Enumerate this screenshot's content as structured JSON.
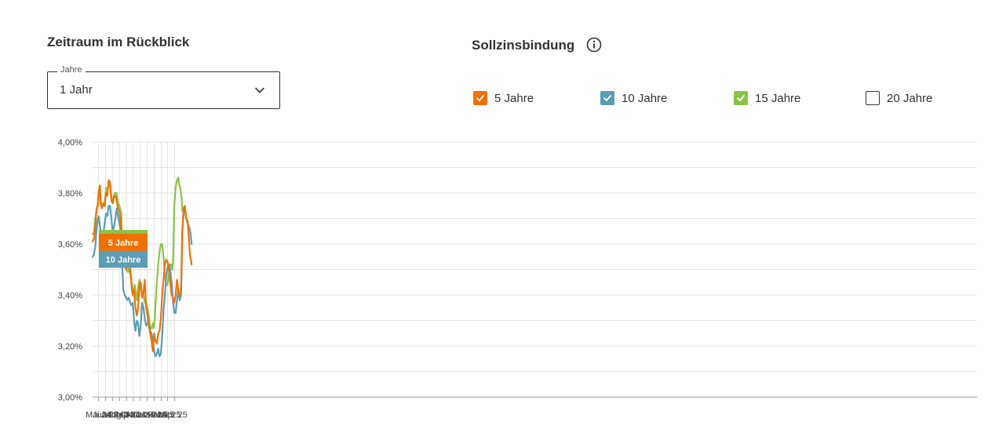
{
  "period": {
    "title": "Zeitraum im Rückblick",
    "select_label": "Jahre",
    "select_value": "1 Jahr"
  },
  "fixation": {
    "title": "Sollzinsbindung",
    "info_icon": "info-icon",
    "options": [
      {
        "label": "5 Jahre",
        "checked": true,
        "color": "#EE7203"
      },
      {
        "label": "10 Jahre",
        "checked": true,
        "color": "#5B9DB4"
      },
      {
        "label": "15 Jahre",
        "checked": true,
        "color": "#8BC34A"
      },
      {
        "label": "20 Jahre",
        "checked": false,
        "color": "#333333"
      }
    ]
  },
  "chart_data": {
    "type": "line",
    "y_ticks": [
      "4,00%",
      "3,80%",
      "3,60%",
      "3,40%",
      "3,20%",
      "3,00%"
    ],
    "ylim": [
      3.0,
      4.0
    ],
    "x_ticks": [
      {
        "label": "Mai 24",
        "t": 0.089
      },
      {
        "label": "Jun 24",
        "t": 0.194
      },
      {
        "label": "Jul 24",
        "t": 0.296
      },
      {
        "label": "Aug 24",
        "t": 0.401
      },
      {
        "label": "Sep 24",
        "t": 0.506
      },
      {
        "label": "Okt 24",
        "t": 0.608
      },
      {
        "label": "Nov 24",
        "t": 0.713
      },
      {
        "label": "Dez 24",
        "t": 0.815
      },
      {
        "label": "Jan 25",
        "t": 0.92
      },
      {
        "label": "Feb 25",
        "t": 1.025
      },
      {
        "label": "Mär 25",
        "t": 1.12
      },
      {
        "label": "Apr 25",
        "t": 1.225
      }
    ],
    "series": [
      {
        "name": "15 Jahre",
        "color": "#8BC34A",
        "tag": "",
        "points": [
          [
            0.0,
            3.64
          ],
          [
            0.02,
            3.64
          ],
          [
            0.04,
            3.7
          ],
          [
            0.06,
            3.73
          ],
          [
            0.08,
            3.77
          ],
          [
            0.09,
            3.81
          ],
          [
            0.11,
            3.82
          ],
          [
            0.12,
            3.77
          ],
          [
            0.14,
            3.75
          ],
          [
            0.16,
            3.76
          ],
          [
            0.18,
            3.75
          ],
          [
            0.2,
            3.82
          ],
          [
            0.23,
            3.82
          ],
          [
            0.25,
            3.85
          ],
          [
            0.27,
            3.81
          ],
          [
            0.29,
            3.77
          ],
          [
            0.31,
            3.77
          ],
          [
            0.33,
            3.8
          ],
          [
            0.36,
            3.8
          ],
          [
            0.38,
            3.76
          ],
          [
            0.4,
            3.75
          ],
          [
            0.43,
            3.72
          ],
          [
            0.44,
            3.59
          ],
          [
            0.46,
            3.53
          ],
          [
            0.48,
            3.53
          ],
          [
            0.5,
            3.5
          ],
          [
            0.53,
            3.49
          ],
          [
            0.55,
            3.51
          ],
          [
            0.57,
            3.47
          ],
          [
            0.59,
            3.41
          ],
          [
            0.61,
            3.42
          ],
          [
            0.63,
            3.44
          ],
          [
            0.65,
            3.4
          ],
          [
            0.66,
            3.38
          ],
          [
            0.68,
            3.43
          ],
          [
            0.7,
            3.46
          ],
          [
            0.72,
            3.42
          ],
          [
            0.74,
            3.41
          ],
          [
            0.76,
            3.4
          ],
          [
            0.78,
            3.37
          ],
          [
            0.8,
            3.37
          ],
          [
            0.82,
            3.35
          ],
          [
            0.84,
            3.32
          ],
          [
            0.86,
            3.27
          ],
          [
            0.88,
            3.27
          ],
          [
            0.9,
            3.29
          ],
          [
            0.91,
            3.27
          ],
          [
            0.93,
            3.31
          ],
          [
            0.94,
            3.37
          ],
          [
            0.96,
            3.45
          ],
          [
            0.98,
            3.52
          ],
          [
            1.0,
            3.57
          ],
          [
            1.02,
            3.6
          ],
          [
            1.04,
            3.6
          ],
          [
            1.06,
            3.55
          ],
          [
            1.08,
            3.48
          ],
          [
            1.1,
            3.44
          ],
          [
            1.12,
            3.44
          ],
          [
            1.14,
            3.48
          ],
          [
            1.16,
            3.52
          ],
          [
            1.18,
            3.52
          ],
          [
            1.19,
            3.5
          ],
          [
            1.2,
            3.52
          ],
          [
            1.21,
            3.62
          ],
          [
            1.22,
            3.75
          ],
          [
            1.24,
            3.82
          ],
          [
            1.26,
            3.85
          ],
          [
            1.28,
            3.86
          ],
          [
            1.29,
            3.84
          ],
          [
            1.31,
            3.82
          ],
          [
            1.32,
            3.8
          ],
          [
            1.33,
            3.78
          ],
          [
            1.34,
            3.73
          ]
        ]
      },
      {
        "name": "10 Jahre",
        "color": "#5B9DB4",
        "tag": "10 Jahre",
        "points": [
          [
            0.0,
            3.55
          ],
          [
            0.02,
            3.56
          ],
          [
            0.04,
            3.59
          ],
          [
            0.06,
            3.66
          ],
          [
            0.08,
            3.7
          ],
          [
            0.09,
            3.71
          ],
          [
            0.1,
            3.69
          ],
          [
            0.12,
            3.65
          ],
          [
            0.14,
            3.65
          ],
          [
            0.16,
            3.64
          ],
          [
            0.18,
            3.68
          ],
          [
            0.2,
            3.72
          ],
          [
            0.22,
            3.71
          ],
          [
            0.24,
            3.75
          ],
          [
            0.26,
            3.75
          ],
          [
            0.28,
            3.7
          ],
          [
            0.3,
            3.65
          ],
          [
            0.32,
            3.67
          ],
          [
            0.34,
            3.7
          ],
          [
            0.36,
            3.74
          ],
          [
            0.38,
            3.71
          ],
          [
            0.4,
            3.68
          ],
          [
            0.42,
            3.65
          ],
          [
            0.44,
            3.53
          ],
          [
            0.46,
            3.42
          ],
          [
            0.48,
            3.4
          ],
          [
            0.5,
            3.39
          ],
          [
            0.52,
            3.38
          ],
          [
            0.54,
            3.39
          ],
          [
            0.56,
            3.37
          ],
          [
            0.58,
            3.36
          ],
          [
            0.6,
            3.37
          ],
          [
            0.62,
            3.3
          ],
          [
            0.64,
            3.26
          ],
          [
            0.66,
            3.3
          ],
          [
            0.68,
            3.29
          ],
          [
            0.7,
            3.24
          ],
          [
            0.72,
            3.28
          ],
          [
            0.74,
            3.37
          ],
          [
            0.76,
            3.35
          ],
          [
            0.78,
            3.31
          ],
          [
            0.8,
            3.28
          ],
          [
            0.82,
            3.29
          ],
          [
            0.84,
            3.29
          ],
          [
            0.86,
            3.26
          ],
          [
            0.88,
            3.25
          ],
          [
            0.9,
            3.23
          ],
          [
            0.92,
            3.18
          ],
          [
            0.94,
            3.16
          ],
          [
            0.96,
            3.17
          ],
          [
            0.98,
            3.19
          ],
          [
            1.0,
            3.16
          ],
          [
            1.02,
            3.17
          ],
          [
            1.04,
            3.24
          ],
          [
            1.06,
            3.34
          ],
          [
            1.08,
            3.4
          ],
          [
            1.1,
            3.47
          ],
          [
            1.12,
            3.51
          ],
          [
            1.14,
            3.52
          ],
          [
            1.16,
            3.5
          ],
          [
            1.18,
            3.45
          ],
          [
            1.2,
            3.38
          ],
          [
            1.22,
            3.33
          ],
          [
            1.24,
            3.33
          ],
          [
            1.26,
            3.38
          ],
          [
            1.28,
            3.42
          ],
          [
            1.3,
            3.38
          ],
          [
            1.32,
            3.4
          ],
          [
            1.33,
            3.5
          ],
          [
            1.34,
            3.65
          ],
          [
            1.36,
            3.72
          ],
          [
            1.38,
            3.73
          ],
          [
            1.4,
            3.7
          ],
          [
            1.42,
            3.68
          ],
          [
            1.44,
            3.67
          ],
          [
            1.46,
            3.65
          ],
          [
            1.48,
            3.6
          ]
        ]
      },
      {
        "name": "5 Jahre",
        "color": "#EE7203",
        "tag": "5 Jahre",
        "points": [
          [
            0.0,
            3.61
          ],
          [
            0.02,
            3.62
          ],
          [
            0.04,
            3.67
          ],
          [
            0.06,
            3.74
          ],
          [
            0.08,
            3.75
          ],
          [
            0.09,
            3.79
          ],
          [
            0.1,
            3.82
          ],
          [
            0.11,
            3.83
          ],
          [
            0.12,
            3.76
          ],
          [
            0.14,
            3.74
          ],
          [
            0.16,
            3.76
          ],
          [
            0.18,
            3.75
          ],
          [
            0.2,
            3.8
          ],
          [
            0.22,
            3.79
          ],
          [
            0.24,
            3.85
          ],
          [
            0.26,
            3.84
          ],
          [
            0.28,
            3.77
          ],
          [
            0.3,
            3.76
          ],
          [
            0.32,
            3.79
          ],
          [
            0.34,
            3.79
          ],
          [
            0.36,
            3.77
          ],
          [
            0.38,
            3.74
          ],
          [
            0.4,
            3.73
          ],
          [
            0.42,
            3.69
          ],
          [
            0.44,
            3.57
          ],
          [
            0.46,
            3.54
          ],
          [
            0.48,
            3.56
          ],
          [
            0.5,
            3.5
          ],
          [
            0.52,
            3.51
          ],
          [
            0.54,
            3.51
          ],
          [
            0.56,
            3.51
          ],
          [
            0.58,
            3.45
          ],
          [
            0.6,
            3.4
          ],
          [
            0.62,
            3.42
          ],
          [
            0.64,
            3.35
          ],
          [
            0.66,
            3.32
          ],
          [
            0.68,
            3.35
          ],
          [
            0.7,
            3.44
          ],
          [
            0.72,
            3.45
          ],
          [
            0.74,
            3.39
          ],
          [
            0.76,
            3.41
          ],
          [
            0.78,
            3.46
          ],
          [
            0.8,
            3.35
          ],
          [
            0.82,
            3.32
          ],
          [
            0.84,
            3.28
          ],
          [
            0.86,
            3.25
          ],
          [
            0.88,
            3.22
          ],
          [
            0.9,
            3.18
          ],
          [
            0.92,
            3.25
          ],
          [
            0.94,
            3.22
          ],
          [
            0.96,
            3.21
          ],
          [
            0.98,
            3.25
          ],
          [
            1.0,
            3.26
          ],
          [
            1.02,
            3.31
          ],
          [
            1.04,
            3.4
          ],
          [
            1.06,
            3.46
          ],
          [
            1.08,
            3.52
          ],
          [
            1.1,
            3.54
          ],
          [
            1.12,
            3.53
          ],
          [
            1.14,
            3.5
          ],
          [
            1.16,
            3.45
          ],
          [
            1.18,
            3.4
          ],
          [
            1.2,
            3.39
          ],
          [
            1.22,
            3.37
          ],
          [
            1.24,
            3.4
          ],
          [
            1.26,
            3.46
          ],
          [
            1.28,
            3.42
          ],
          [
            1.3,
            3.4
          ],
          [
            1.32,
            3.4
          ],
          [
            1.33,
            3.52
          ],
          [
            1.34,
            3.65
          ],
          [
            1.36,
            3.74
          ],
          [
            1.38,
            3.75
          ],
          [
            1.4,
            3.7
          ],
          [
            1.42,
            3.69
          ],
          [
            1.44,
            3.62
          ],
          [
            1.45,
            3.57
          ],
          [
            1.46,
            3.55
          ],
          [
            1.48,
            3.52
          ]
        ]
      }
    ]
  }
}
